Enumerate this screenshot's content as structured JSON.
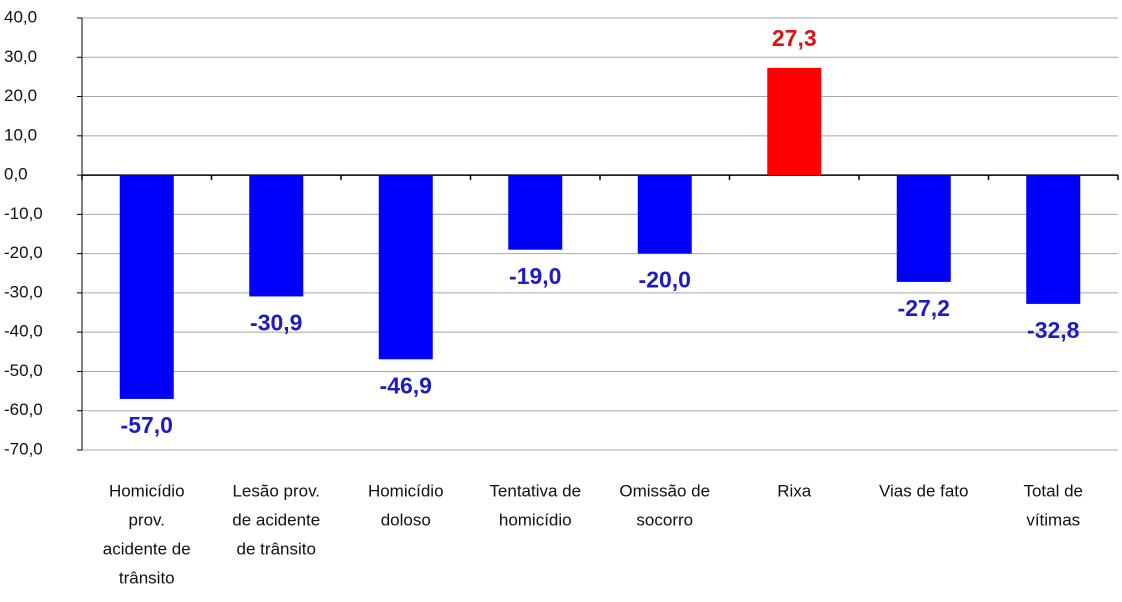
{
  "chart_data": {
    "type": "bar",
    "categories": [
      [
        "Homicídio",
        "prov.",
        "acidente de",
        "trânsito"
      ],
      [
        "Lesão prov.",
        "de acidente",
        "de trânsito"
      ],
      [
        "Homicídio",
        "doloso"
      ],
      [
        "Tentativa de",
        "homicídio"
      ],
      [
        "Omissão de",
        "socorro"
      ],
      [
        "Rixa"
      ],
      [
        "Vias de fato"
      ],
      [
        "Total de",
        "vítimas"
      ]
    ],
    "values": [
      -57.0,
      -30.9,
      -46.9,
      -19.0,
      -20.0,
      27.3,
      -27.2,
      -32.8
    ],
    "value_labels": [
      "-57,0",
      "-30,9",
      "-46,9",
      "-19,0",
      "-20,0",
      "27,3",
      "-27,2",
      "-32,8"
    ],
    "colors": [
      "#0000ff",
      "#0000ff",
      "#0000ff",
      "#0000ff",
      "#0000ff",
      "#ff0000",
      "#0000ff",
      "#0000ff"
    ],
    "label_colors": [
      "#1c1cc4",
      "#1c1cc4",
      "#1c1cc4",
      "#1c1cc4",
      "#1c1cc4",
      "#e01010",
      "#1c1cc4",
      "#1c1cc4"
    ],
    "ylim": [
      -70,
      40
    ],
    "yticks": [
      {
        "value": 40,
        "label": "40,0"
      },
      {
        "value": 30,
        "label": "30,0"
      },
      {
        "value": 20,
        "label": "20,0"
      },
      {
        "value": 10,
        "label": "10,0"
      },
      {
        "value": 0,
        "label": "0,0"
      },
      {
        "value": -10,
        "label": "-10,0"
      },
      {
        "value": -20,
        "label": "-20,0"
      },
      {
        "value": -30,
        "label": "-30,0"
      },
      {
        "value": -40,
        "label": "-40,0"
      },
      {
        "value": -50,
        "label": "-50,0"
      },
      {
        "value": -60,
        "label": "-60,0"
      },
      {
        "value": -70,
        "label": "-70,0"
      }
    ],
    "grid": true
  }
}
